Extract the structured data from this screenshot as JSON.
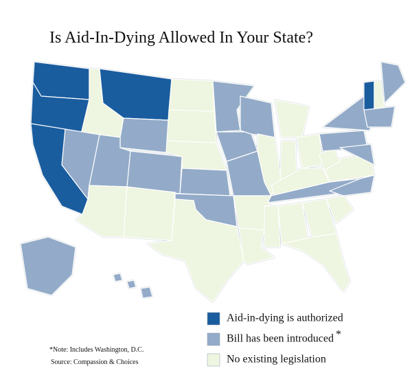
{
  "title": "Is Aid-In-Dying Allowed In Your State?",
  "legend": [
    {
      "label": "Aid-in-dying is authorized",
      "color": "#1a5d9f"
    },
    {
      "label": "Bill has been introduced",
      "color": "#93abc8",
      "mark": "*"
    },
    {
      "label": "No existing legislation",
      "color": "#eef5e0"
    }
  ],
  "notes": [
    "*Note: Includes Washington, D.C.",
    "Source: Compassion & Choices"
  ],
  "outline_color": "#8a9aa8"
}
